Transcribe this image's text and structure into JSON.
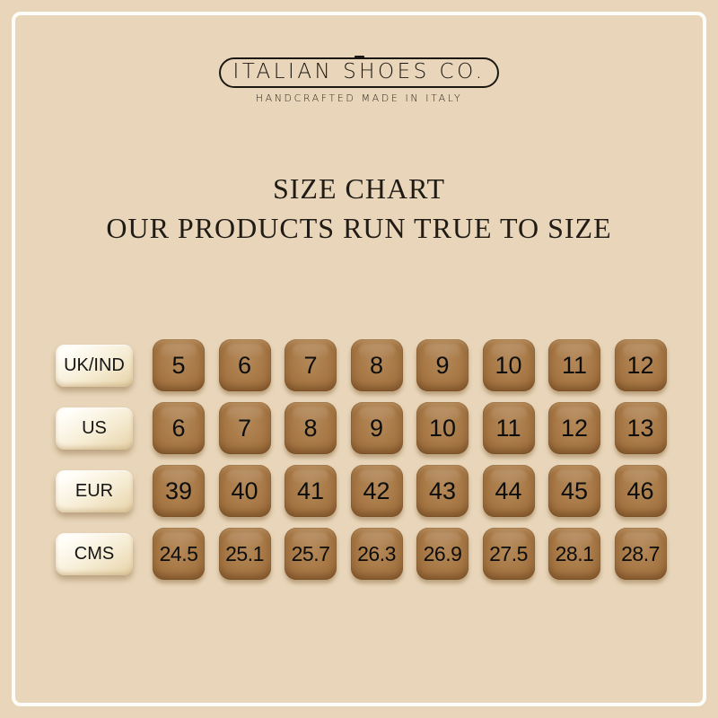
{
  "logo": {
    "name": "ITALIAN SHOES CO.",
    "tagline": "HANDCRAFTED MADE IN ITALY"
  },
  "heading": {
    "line1": "SIZE CHART",
    "line2": "OUR PRODUCTS RUN TRUE TO SIZE"
  },
  "chart_data": {
    "type": "table",
    "title": "SIZE CHART",
    "subtitle": "OUR PRODUCTS RUN TRUE TO SIZE",
    "rows": [
      {
        "label": "UK/IND",
        "values": [
          "5",
          "6",
          "7",
          "8",
          "9",
          "10",
          "11",
          "12"
        ]
      },
      {
        "label": "US",
        "values": [
          "6",
          "7",
          "8",
          "9",
          "10",
          "11",
          "12",
          "13"
        ]
      },
      {
        "label": "EUR",
        "values": [
          "39",
          "40",
          "41",
          "42",
          "43",
          "44",
          "45",
          "46"
        ]
      },
      {
        "label": "CMS",
        "values": [
          "24.5",
          "25.1",
          "25.7",
          "26.3",
          "26.9",
          "27.5",
          "28.1",
          "28.7"
        ]
      }
    ]
  },
  "colors": {
    "background": "#e9d6ba",
    "frame": "#fdfdf9",
    "ink": "#1b1713",
    "key_brown": "#a87946",
    "key_brown_dark": "#8a5c30",
    "key_brown_light": "#b4895a",
    "chip_cream": "#fffef8",
    "chip_cream_deep": "#e6d2a8"
  }
}
